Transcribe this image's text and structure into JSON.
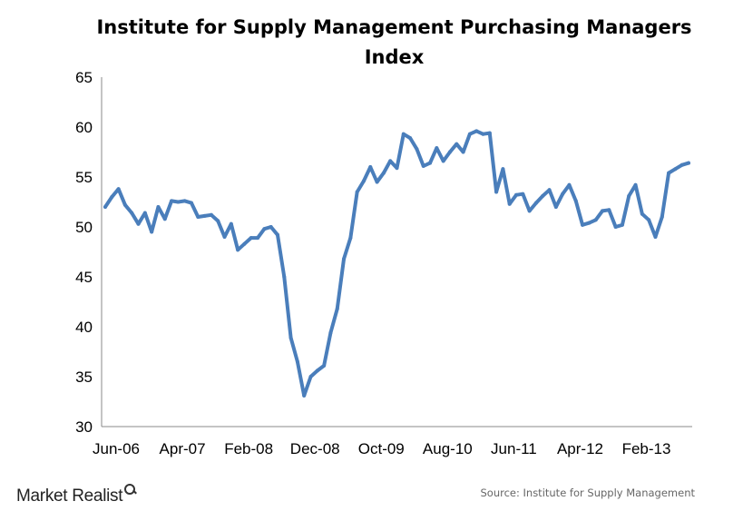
{
  "chart_data": {
    "type": "line",
    "title": "Institute for Supply Management Purchasing Managers Index",
    "xlabel": "",
    "ylabel": "",
    "ylim": [
      30,
      65
    ],
    "yticks": [
      30,
      35,
      40,
      45,
      50,
      55,
      60,
      65
    ],
    "xticks": [
      "Jun-06",
      "Apr-07",
      "Feb-08",
      "Dec-08",
      "Oct-09",
      "Aug-10",
      "Jun-11",
      "Apr-12",
      "Feb-13"
    ],
    "grid": false,
    "legend": "none",
    "line_color": "#4a7ebb",
    "series": [
      {
        "x": [
          "Jun-06",
          "Jul-06",
          "Aug-06",
          "Sep-06",
          "Oct-06",
          "Nov-06",
          "Dec-06",
          "Jan-07",
          "Feb-07",
          "Mar-07",
          "Apr-07",
          "May-07",
          "Jun-07",
          "Jul-07",
          "Aug-07",
          "Sep-07",
          "Oct-07",
          "Nov-07",
          "Dec-07",
          "Jan-08",
          "Feb-08",
          "Mar-08",
          "Apr-08",
          "May-08",
          "Jun-08",
          "Jul-08",
          "Aug-08",
          "Sep-08",
          "Oct-08",
          "Nov-08",
          "Dec-08",
          "Jan-09",
          "Feb-09",
          "Mar-09",
          "Apr-09",
          "May-09",
          "Jun-09",
          "Jul-09",
          "Aug-09",
          "Sep-09",
          "Oct-09",
          "Nov-09",
          "Dec-09",
          "Jan-10",
          "Feb-10",
          "Mar-10",
          "Apr-10",
          "May-10",
          "Jun-10",
          "Jul-10",
          "Aug-10",
          "Sep-10",
          "Oct-10",
          "Nov-10",
          "Dec-10",
          "Jan-11",
          "Feb-11",
          "Mar-11",
          "Apr-11",
          "May-11",
          "Jun-11",
          "Jul-11",
          "Aug-11",
          "Sep-11",
          "Oct-11",
          "Nov-11",
          "Dec-11",
          "Jan-12",
          "Feb-12",
          "Mar-12",
          "Apr-12",
          "May-12",
          "Jun-12",
          "Jul-12",
          "Aug-12",
          "Sep-12",
          "Oct-12",
          "Nov-12",
          "Dec-12",
          "Jan-13",
          "Feb-13",
          "Mar-13",
          "Apr-13",
          "May-13",
          "Jun-13",
          "Jul-13",
          "Aug-13",
          "Sep-13",
          "Oct-13"
        ],
        "values": [
          52.0,
          53.0,
          53.8,
          52.2,
          51.4,
          50.3,
          51.4,
          49.5,
          52.0,
          50.8,
          52.6,
          52.5,
          52.6,
          52.4,
          51.0,
          51.1,
          51.2,
          50.6,
          49.0,
          50.3,
          47.7,
          48.3,
          48.9,
          48.9,
          49.8,
          50.0,
          49.2,
          45.0,
          38.9,
          36.5,
          33.1,
          35.0,
          35.6,
          36.1,
          39.4,
          41.8,
          46.8,
          48.9,
          53.5,
          54.6,
          56.0,
          54.5,
          55.4,
          56.6,
          55.9,
          59.3,
          58.9,
          57.8,
          56.1,
          56.4,
          57.9,
          56.6,
          57.5,
          58.3,
          57.5,
          59.3,
          59.6,
          59.3,
          59.4,
          53.5,
          55.8,
          52.3,
          53.2,
          53.3,
          51.6,
          52.4,
          53.1,
          53.7,
          52.0,
          53.3,
          54.2,
          52.6,
          50.2,
          50.4,
          50.7,
          51.6,
          51.7,
          50.0,
          50.2,
          53.1,
          54.2,
          51.3,
          50.7,
          49.0,
          51.0,
          55.4,
          55.8,
          56.2,
          56.4
        ]
      }
    ]
  },
  "branding": {
    "logo_text": "Market Realist",
    "logo_icon": "magnifier-icon"
  },
  "source": "Source: Institute for Supply Management"
}
